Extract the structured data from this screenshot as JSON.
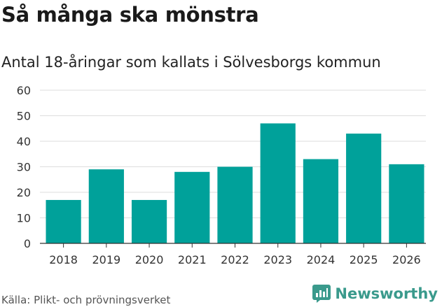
{
  "chart_data": {
    "type": "bar",
    "title": "Så många ska mönstra",
    "subtitle": "Antal 18-åringar som kallats i Sölvesborgs kommun",
    "categories": [
      "2018",
      "2019",
      "2020",
      "2021",
      "2022",
      "2023",
      "2024",
      "2025",
      "2026"
    ],
    "values": [
      17,
      29,
      17,
      28,
      30,
      47,
      33,
      43,
      31
    ],
    "ylim": [
      0,
      60
    ],
    "yticks": [
      0,
      10,
      20,
      30,
      40,
      50,
      60
    ],
    "grid": true,
    "bar_color": "#00a19a"
  },
  "footer": {
    "source": "Källa: Plikt- och prövningsverket",
    "brand": "Newsworthy",
    "brand_color": "#3a9a8c"
  }
}
